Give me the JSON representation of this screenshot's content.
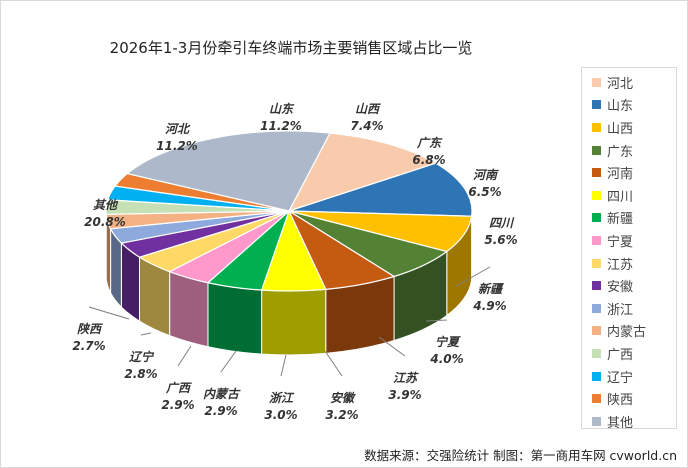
{
  "chart_data": {
    "type": "pie",
    "title": "2026年1-3月份牵引车终端市场主要销售区域占比一览",
    "unit": "%",
    "slices": [
      {
        "name": "河北",
        "value": 11.2,
        "label": "11.2%",
        "color": "#F8CBAD"
      },
      {
        "name": "山东",
        "value": 11.2,
        "label": "11.2%",
        "color": "#2E75B6"
      },
      {
        "name": "山西",
        "value": 7.4,
        "label": "7.4%",
        "color": "#FFC000"
      },
      {
        "name": "广东",
        "value": 6.8,
        "label": "6.8%",
        "color": "#548235"
      },
      {
        "name": "河南",
        "value": 6.5,
        "label": "6.5%",
        "color": "#C55A11"
      },
      {
        "name": "四川",
        "value": 5.6,
        "label": "5.6%",
        "color": "#FFFF00"
      },
      {
        "name": "新疆",
        "value": 4.9,
        "label": "4.9%",
        "color": "#00B050"
      },
      {
        "name": "宁夏",
        "value": 4.0,
        "label": "4.0%",
        "color": "#FF99CC"
      },
      {
        "name": "江苏",
        "value": 3.9,
        "label": "3.9%",
        "color": "#FFD966"
      },
      {
        "name": "安徽",
        "value": 3.2,
        "label": "3.2%",
        "color": "#7030A0"
      },
      {
        "name": "浙江",
        "value": 3.0,
        "label": "3.0%",
        "color": "#8EA9DB"
      },
      {
        "name": "内蒙古",
        "value": 2.9,
        "label": "2.9%",
        "color": "#F4B183"
      },
      {
        "name": "广西",
        "value": 2.9,
        "label": "2.9%",
        "color": "#C5E0B4"
      },
      {
        "name": "辽宁",
        "value": 2.8,
        "label": "2.8%",
        "color": "#00B0F0"
      },
      {
        "name": "陕西",
        "value": 2.7,
        "label": "2.7%",
        "color": "#ED7D31"
      },
      {
        "name": "其他",
        "value": 20.8,
        "label": "20.8%",
        "color": "#ADB9CA"
      }
    ],
    "legend_position": "right"
  },
  "footer": {
    "source": "数据来源：交强险统计   制图：第一商用车网 cvworld.cn"
  }
}
